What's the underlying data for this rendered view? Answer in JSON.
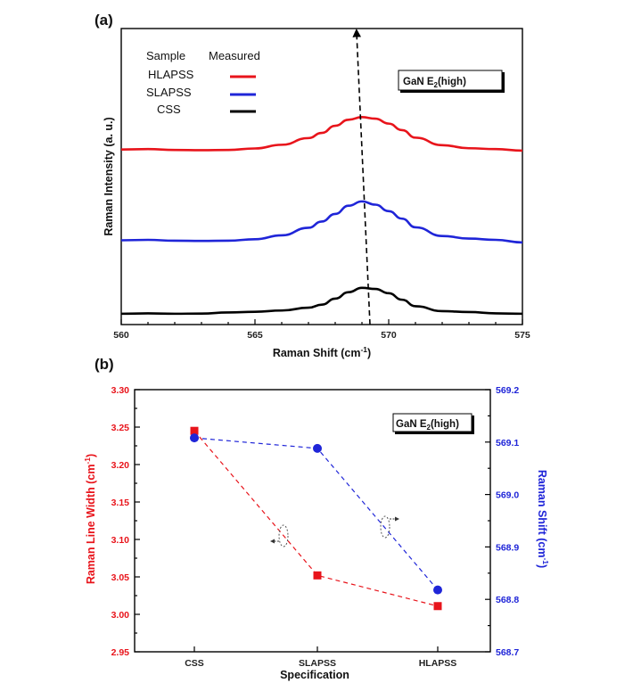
{
  "chart_data": [
    {
      "type": "line",
      "panel_label": "(a)",
      "annotation": "GaN E",
      "annotation_sub": "2",
      "annotation_suffix": "(high)",
      "xlabel": "Raman Shift (cm",
      "xlabel_sup": "-1",
      "xlabel_suffix": ")",
      "ylabel": "Raman Intensity (a. u.)",
      "xlim": [
        560,
        575
      ],
      "xticks": [
        560,
        565,
        570,
        575
      ],
      "legend": {
        "header_sample": "Sample",
        "header_measured": "Measured",
        "placement": "top-left",
        "entries": [
          "HLAPSS",
          "SLAPSS",
          "CSS"
        ]
      },
      "series": [
        {
          "name": "HLAPSS",
          "color": "#e8141b",
          "x": [
            560,
            561,
            562,
            563,
            564,
            565,
            566,
            567,
            567.5,
            568,
            568.5,
            569,
            569.5,
            570,
            570.5,
            571,
            572,
            573,
            574,
            575
          ],
          "y": [
            0.76,
            0.762,
            0.758,
            0.757,
            0.758,
            0.765,
            0.782,
            0.813,
            0.837,
            0.87,
            0.898,
            0.91,
            0.903,
            0.88,
            0.85,
            0.815,
            0.78,
            0.766,
            0.762,
            0.755
          ]
        },
        {
          "name": "SLAPSS",
          "color": "#1f25d8",
          "x": [
            560,
            561,
            562,
            563,
            564,
            565,
            566,
            567,
            567.5,
            568,
            568.5,
            569,
            569.5,
            570,
            570.5,
            571,
            572,
            573,
            574,
            575
          ],
          "y": [
            0.34,
            0.342,
            0.338,
            0.337,
            0.338,
            0.345,
            0.363,
            0.398,
            0.427,
            0.462,
            0.5,
            0.52,
            0.505,
            0.475,
            0.44,
            0.4,
            0.36,
            0.348,
            0.342,
            0.33
          ]
        },
        {
          "name": "CSS",
          "color": "#000000",
          "x": [
            560,
            561,
            562,
            563,
            564,
            565,
            566,
            567,
            567.5,
            568,
            568.5,
            569,
            569.5,
            570,
            570.5,
            571,
            572,
            573,
            574,
            575
          ],
          "y": [
            0.0,
            0.002,
            0.0,
            0.001,
            0.006,
            0.009,
            0.015,
            0.028,
            0.042,
            0.07,
            0.1,
            0.12,
            0.115,
            0.095,
            0.065,
            0.035,
            0.012,
            0.008,
            0.002,
            0.0
          ]
        }
      ],
      "arrow": {
        "from": [
          569.3,
          -0.05
        ],
        "to": [
          568.8,
          1.3
        ],
        "style": "dashed"
      }
    },
    {
      "type": "line",
      "panel_label": "(b)",
      "annotation": "GaN E",
      "annotation_sub": "2",
      "annotation_suffix": "(high)",
      "xlabel": "Specification",
      "ylabel": "Raman Line Width (cm",
      "ylabel_sup": "-1",
      "ylabel_suffix": ")",
      "ylabel_right": "Raman Shift (cm",
      "ylabel_right_sup": "-1",
      "ylabel_right_suffix": ")",
      "categories": [
        "CSS",
        "SLAPSS",
        "HLAPSS"
      ],
      "ylim": [
        2.95,
        3.3
      ],
      "yticks": [
        "2.95",
        "3.00",
        "3.05",
        "3.10",
        "3.15",
        "3.20",
        "3.25",
        "3.30"
      ],
      "ylim_right": [
        568.7,
        569.2
      ],
      "yticks_right": [
        "568.7",
        "568.8",
        "568.9",
        "569.0",
        "569.1",
        "569.2"
      ],
      "series": [
        {
          "name": "Raman Line Width",
          "axis": "left",
          "color": "#e8141b",
          "marker": "square",
          "values": [
            3.245,
            3.052,
            3.011
          ]
        },
        {
          "name": "Raman Shift",
          "axis": "right",
          "color": "#1f25d8",
          "marker": "circle",
          "values": [
            569.108,
            569.088,
            568.818
          ]
        }
      ]
    }
  ]
}
